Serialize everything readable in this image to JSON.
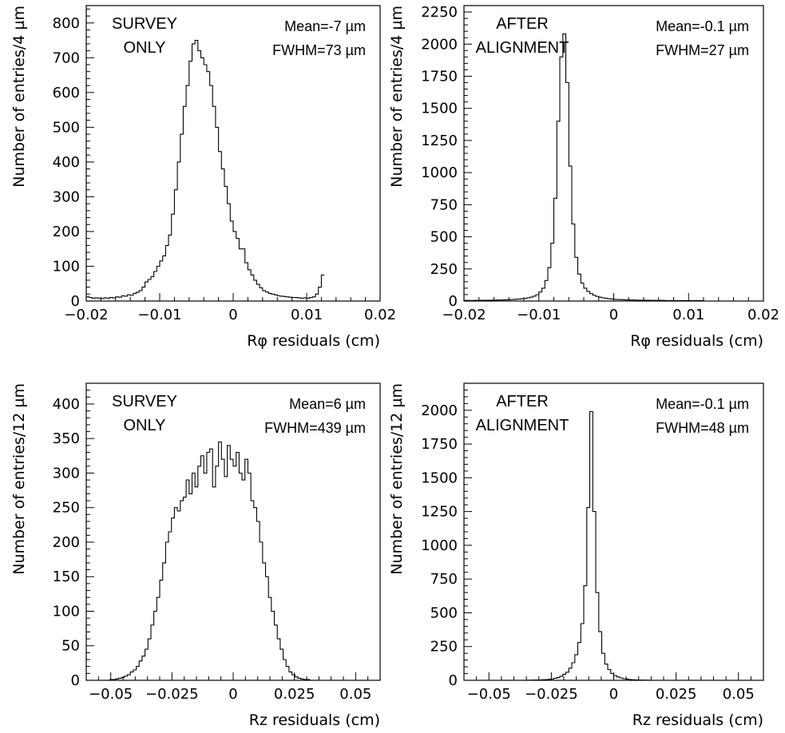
{
  "chart_data": [
    {
      "type": "histogram",
      "panel": "top-left",
      "label_lines": [
        "SURVEY",
        "ONLY"
      ],
      "stats_lines": [
        "Mean=-7 µm",
        "FWHM=73 µm"
      ],
      "xlabel": "Rφ residuals (cm)",
      "ylabel": "Number of entries/4 µm",
      "xlim": [
        -0.02,
        0.02
      ],
      "ylim": [
        0,
        850
      ],
      "xticks": [
        -0.02,
        -0.01,
        0,
        0.01,
        0.02
      ],
      "xtick_labels": [
        "−0.02",
        "−0.01",
        "0",
        "0.01",
        "0.02"
      ],
      "yticks": [
        0,
        100,
        200,
        300,
        400,
        500,
        600,
        700,
        800
      ],
      "ytick_labels": [
        "0",
        "100",
        "200",
        "300",
        "400",
        "500",
        "600",
        "700",
        "800"
      ],
      "bins": {
        "start": -0.02,
        "width": 0.0004,
        "values": [
          12,
          10,
          8,
          9,
          8,
          7,
          9,
          8,
          10,
          9,
          12,
          11,
          15,
          14,
          18,
          16,
          22,
          25,
          30,
          40,
          55,
          62,
          70,
          85,
          100,
          115,
          130,
          160,
          190,
          250,
          320,
          400,
          480,
          560,
          620,
          690,
          740,
          750,
          720,
          700,
          680,
          660,
          620,
          560,
          500,
          430,
          380,
          330,
          280,
          230,
          200,
          180,
          150,
          150,
          110,
          90,
          75,
          60,
          48,
          38,
          30,
          26,
          22,
          20,
          18,
          15,
          14,
          13,
          12,
          11,
          10,
          10,
          9,
          8,
          9,
          8,
          10,
          12,
          20,
          40,
          75
        ]
      }
    },
    {
      "type": "histogram",
      "panel": "top-right",
      "label_lines": [
        "AFTER",
        "ALIGNMENT"
      ],
      "stats_lines": [
        "Mean=-0.1 µm",
        "FWHM=27 µm"
      ],
      "xlabel": "Rφ residuals (cm)",
      "ylabel": "Number of entries/4 µm",
      "xlim": [
        -0.02,
        0.02
      ],
      "ylim": [
        0,
        2300
      ],
      "xticks": [
        -0.02,
        -0.01,
        0,
        0.01,
        0.02
      ],
      "xtick_labels": [
        "−0.02",
        "−0.01",
        "0",
        "0.01",
        "0.02"
      ],
      "yticks": [
        0,
        250,
        500,
        750,
        1000,
        1250,
        1500,
        1750,
        2000,
        2250
      ],
      "ytick_labels": [
        "0",
        "250",
        "500",
        "750",
        "1000",
        "1250",
        "1500",
        "1750",
        "2000",
        "2250"
      ],
      "bins": {
        "start": -0.02,
        "width": 0.0004,
        "values": [
          5,
          5,
          4,
          5,
          5,
          6,
          5,
          6,
          6,
          7,
          7,
          8,
          8,
          9,
          10,
          11,
          12,
          14,
          15,
          18,
          20,
          25,
          30,
          38,
          50,
          70,
          100,
          160,
          260,
          450,
          800,
          1400,
          1900,
          2080,
          1700,
          1050,
          600,
          340,
          210,
          140,
          100,
          75,
          58,
          45,
          36,
          30,
          25,
          21,
          18,
          15,
          13,
          12,
          11,
          10,
          9,
          8,
          8,
          7,
          7,
          6,
          6,
          6,
          5,
          5,
          5,
          5,
          5,
          4,
          4,
          4,
          4,
          4,
          4,
          4,
          4,
          4,
          4,
          4,
          4,
          4
        ]
      }
    },
    {
      "type": "histogram",
      "panel": "bottom-left",
      "label_lines": [
        "SURVEY",
        "ONLY"
      ],
      "stats_lines": [
        "Mean=6 µm",
        "FWHM=439 µm"
      ],
      "xlabel": "Rz residuals (cm)",
      "ylabel": "Number of entries/12 µm",
      "xlim": [
        -0.06,
        0.06
      ],
      "ylim": [
        0,
        430
      ],
      "xticks": [
        -0.05,
        -0.025,
        0,
        0.025,
        0.05
      ],
      "xtick_labels": [
        "−0.05",
        "−0.025",
        "0",
        "0.025",
        "0.05"
      ],
      "yticks": [
        0,
        50,
        100,
        150,
        200,
        250,
        300,
        350,
        400
      ],
      "ytick_labels": [
        "0",
        "50",
        "100",
        "150",
        "200",
        "250",
        "300",
        "350",
        "400"
      ],
      "bins": {
        "start": -0.06,
        "width": 0.0012,
        "values": [
          0,
          0,
          0,
          0,
          0,
          0,
          0,
          0,
          1,
          1,
          2,
          3,
          4,
          6,
          8,
          12,
          15,
          20,
          28,
          35,
          45,
          60,
          80,
          100,
          120,
          145,
          170,
          200,
          215,
          235,
          250,
          245,
          260,
          265,
          290,
          270,
          300,
          280,
          310,
          325,
          300,
          330,
          335,
          280,
          310,
          345,
          320,
          295,
          340,
          320,
          310,
          330,
          300,
          290,
          320,
          300,
          260,
          250,
          230,
          200,
          170,
          150,
          120,
          100,
          80,
          60,
          45,
          30,
          20,
          12,
          8,
          5,
          3,
          2,
          1,
          1,
          0,
          0,
          0,
          0,
          0,
          0,
          0,
          0,
          0,
          0,
          0,
          0,
          0,
          0,
          0,
          0,
          0,
          0,
          0,
          0,
          0,
          0,
          0,
          0
        ]
      }
    },
    {
      "type": "histogram",
      "panel": "bottom-right",
      "label_lines": [
        "AFTER",
        "ALIGNMENT"
      ],
      "stats_lines": [
        "Mean=-0.1 µm",
        "FWHM=48 µm"
      ],
      "xlabel": "Rz residuals (cm)",
      "ylabel": "Number of entries/12 µm",
      "xlim": [
        -0.06,
        0.06
      ],
      "ylim": [
        0,
        2200
      ],
      "xticks": [
        -0.05,
        -0.025,
        0,
        0.025,
        0.05
      ],
      "xtick_labels": [
        "−0.05",
        "−0.025",
        "0",
        "0.025",
        "0.05"
      ],
      "yticks": [
        0,
        250,
        500,
        750,
        1000,
        1250,
        1500,
        1750,
        2000
      ],
      "ytick_labels": [
        "0",
        "250",
        "500",
        "750",
        "1000",
        "1250",
        "1500",
        "1750",
        "2000"
      ],
      "bins": {
        "start": -0.06,
        "width": 0.0012,
        "values": [
          0,
          0,
          0,
          0,
          0,
          0,
          0,
          0,
          0,
          0,
          0,
          0,
          0,
          0,
          0,
          0,
          0,
          0,
          0,
          0,
          0,
          1,
          1,
          2,
          2,
          3,
          4,
          5,
          7,
          10,
          15,
          20,
          30,
          45,
          60,
          90,
          130,
          190,
          280,
          420,
          700,
          1280,
          1990,
          1250,
          650,
          360,
          200,
          120,
          80,
          50,
          35,
          25,
          18,
          12,
          8,
          6,
          4,
          3,
          2,
          2,
          1,
          1,
          0,
          0,
          0,
          0,
          0,
          0,
          0,
          0,
          0,
          0,
          0,
          0,
          0,
          0,
          0,
          0,
          0,
          0,
          0,
          0,
          0,
          0,
          0,
          0,
          0,
          0,
          0,
          0,
          0,
          0,
          0,
          0,
          0,
          0,
          0,
          0,
          0,
          0
        ]
      }
    }
  ]
}
